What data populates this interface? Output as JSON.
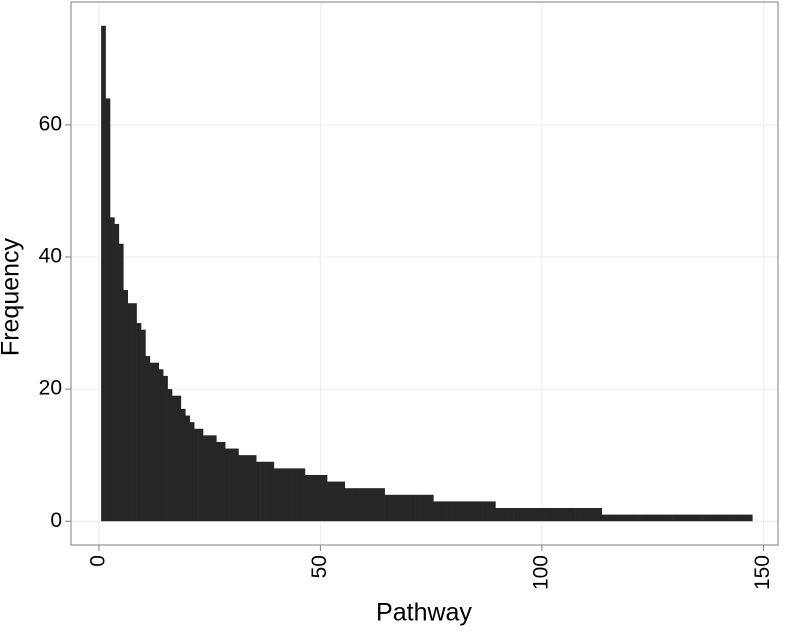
{
  "chart_data": {
    "type": "bar",
    "x_label": "Pathway",
    "y_label": "Frequency",
    "color": "#262626",
    "grid": true,
    "xlim": [
      -6.3,
      153.3
    ],
    "ylim": [
      -3.6,
      78.6
    ],
    "xticks": [
      0,
      50,
      100,
      150
    ],
    "yticks": [
      0,
      20,
      40,
      60
    ],
    "x": [
      1,
      2,
      3,
      4,
      5,
      6,
      7,
      8,
      9,
      10,
      11,
      12,
      13,
      14,
      15,
      16,
      17,
      18,
      19,
      20,
      21,
      22,
      23,
      24,
      25,
      26,
      27,
      28,
      29,
      30,
      31,
      32,
      33,
      34,
      35,
      36,
      37,
      38,
      39,
      40,
      41,
      42,
      43,
      44,
      45,
      46,
      47,
      48,
      49,
      50,
      51,
      52,
      53,
      54,
      55,
      56,
      57,
      58,
      59,
      60,
      61,
      62,
      63,
      64,
      65,
      66,
      67,
      68,
      69,
      70,
      71,
      72,
      73,
      74,
      75,
      76,
      77,
      78,
      79,
      80,
      81,
      82,
      83,
      84,
      85,
      86,
      87,
      88,
      89,
      90,
      91,
      92,
      93,
      94,
      95,
      96,
      97,
      98,
      99,
      100,
      101,
      102,
      103,
      104,
      105,
      106,
      107,
      108,
      109,
      110,
      111,
      112,
      113,
      114,
      115,
      116,
      117,
      118,
      119,
      120,
      121,
      122,
      123,
      124,
      125,
      126,
      127,
      128,
      129,
      130,
      131,
      132,
      133,
      134,
      135,
      136,
      137,
      138,
      139,
      140,
      141,
      142,
      143,
      144,
      145,
      146,
      147
    ],
    "values": [
      75,
      64,
      46,
      45,
      42,
      35,
      33,
      33,
      30,
      29,
      25,
      24,
      24,
      23,
      22,
      20,
      19,
      19,
      17,
      16,
      15,
      14,
      14,
      13,
      13,
      13,
      12,
      12,
      11,
      11,
      11,
      10,
      10,
      10,
      10,
      9,
      9,
      9,
      9,
      8,
      8,
      8,
      8,
      8,
      8,
      8,
      7,
      7,
      7,
      7,
      7,
      6,
      6,
      6,
      6,
      5,
      5,
      5,
      5,
      5,
      5,
      5,
      5,
      5,
      4,
      4,
      4,
      4,
      4,
      4,
      4,
      4,
      4,
      4,
      4,
      3,
      3,
      3,
      3,
      3,
      3,
      3,
      3,
      3,
      3,
      3,
      3,
      3,
      3,
      2,
      2,
      2,
      2,
      2,
      2,
      2,
      2,
      2,
      2,
      2,
      2,
      2,
      2,
      2,
      2,
      2,
      2,
      2,
      2,
      2,
      2,
      2,
      2,
      1,
      1,
      1,
      1,
      1,
      1,
      1,
      1,
      1,
      1,
      1,
      1,
      1,
      1,
      1,
      1,
      1,
      1,
      1,
      1,
      1,
      1,
      1,
      1,
      1,
      1,
      1,
      1,
      1,
      1,
      1,
      1,
      1,
      1
    ]
  }
}
